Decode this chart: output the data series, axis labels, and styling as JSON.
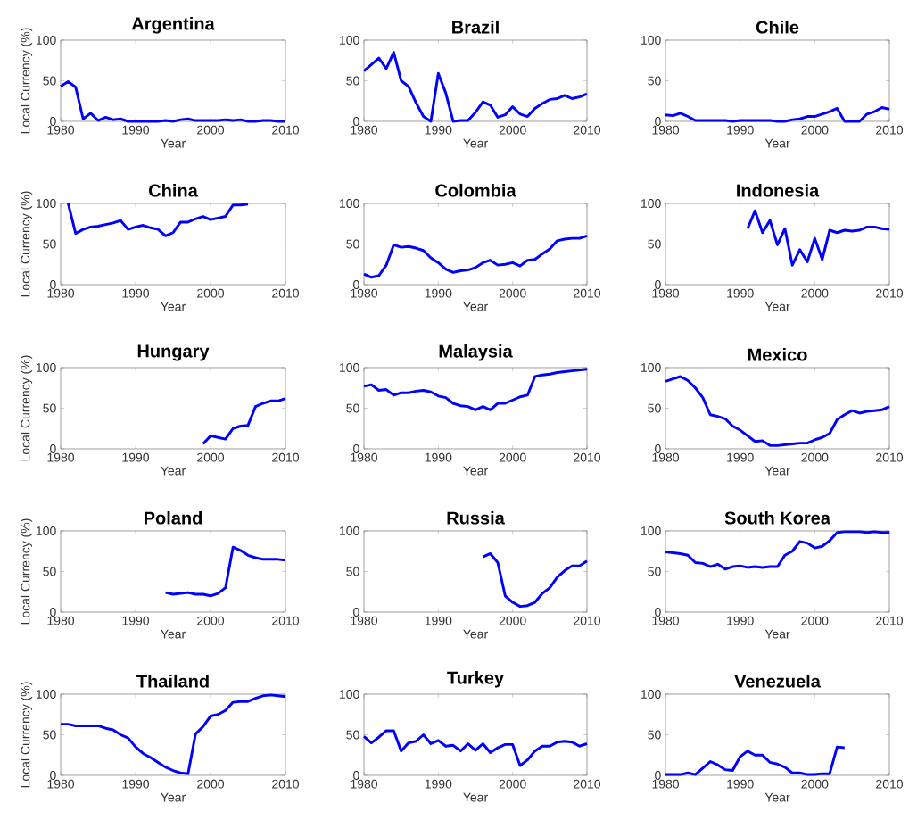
{
  "chart_data": [
    {
      "type": "line",
      "title": "Argentina",
      "xlabel": "Year",
      "ylabel": "Local Currency (%)",
      "color": "#0000ff",
      "xlim": [
        1980,
        2010
      ],
      "ylim": [
        0,
        100
      ],
      "xticks": [
        1980,
        1990,
        2000,
        2010
      ],
      "yticks": [
        0,
        50,
        100
      ],
      "x": [
        1980,
        1981,
        1982,
        1983,
        1984,
        1985,
        1986,
        1987,
        1988,
        1989,
        1990,
        1991,
        1992,
        1993,
        1994,
        1995,
        1996,
        1997,
        1998,
        1999,
        2000,
        2001,
        2002,
        2003,
        2004,
        2005,
        2006,
        2007,
        2008,
        2009,
        2010
      ],
      "values": [
        43,
        49,
        42,
        3,
        10,
        1,
        5,
        2,
        3,
        0,
        0,
        0,
        0,
        0,
        1,
        0,
        2,
        3,
        1,
        1,
        1,
        1,
        2,
        1,
        2,
        0,
        0,
        1,
        1,
        0,
        0
      ]
    },
    {
      "type": "line",
      "title": "Brazil",
      "xlabel": "Year",
      "color": "#0000ff",
      "xlim": [
        1980,
        2010
      ],
      "ylim": [
        0,
        100
      ],
      "xticks": [
        1980,
        1990,
        2000,
        2010
      ],
      "yticks": [
        0,
        50,
        100
      ],
      "x": [
        1980,
        1981,
        1982,
        1983,
        1984,
        1985,
        1986,
        1987,
        1988,
        1989,
        1990,
        1991,
        1992,
        1993,
        1994,
        1995,
        1996,
        1997,
        1998,
        1999,
        2000,
        2001,
        2002,
        2003,
        2004,
        2005,
        2006,
        2007,
        2008,
        2009,
        2010
      ],
      "values": [
        62,
        70,
        78,
        65,
        85,
        50,
        43,
        23,
        6,
        0,
        59,
        35,
        0,
        1,
        1,
        11,
        24,
        20,
        5,
        8,
        18,
        9,
        6,
        16,
        22,
        27,
        28,
        32,
        28,
        30,
        34
      ]
    },
    {
      "type": "line",
      "title": "Chile",
      "xlabel": "Year",
      "color": "#0000ff",
      "xlim": [
        1980,
        2010
      ],
      "ylim": [
        0,
        100
      ],
      "xticks": [
        1980,
        1990,
        2000,
        2010
      ],
      "yticks": [
        0,
        50,
        100
      ],
      "x": [
        1980,
        1981,
        1982,
        1983,
        1984,
        1985,
        1986,
        1987,
        1988,
        1989,
        1990,
        1991,
        1992,
        1993,
        1994,
        1995,
        1996,
        1997,
        1998,
        1999,
        2000,
        2001,
        2002,
        2003,
        2004,
        2005,
        2006,
        2007,
        2008,
        2009,
        2010
      ],
      "values": [
        8,
        7,
        10,
        6,
        1,
        1,
        1,
        1,
        1,
        0,
        1,
        1,
        1,
        1,
        1,
        0,
        0,
        2,
        3,
        6,
        6,
        9,
        12,
        16,
        0,
        0,
        0,
        9,
        12,
        17,
        15
      ]
    },
    {
      "type": "line",
      "title": "China",
      "xlabel": "Year",
      "ylabel": "Local Currency (%)",
      "color": "#0000ff",
      "xlim": [
        1980,
        2010
      ],
      "ylim": [
        0,
        100
      ],
      "xticks": [
        1980,
        1990,
        2000,
        2010
      ],
      "yticks": [
        0,
        50,
        100
      ],
      "x": [
        1981,
        1982,
        1983,
        1984,
        1985,
        1986,
        1987,
        1988,
        1989,
        1990,
        1991,
        1992,
        1993,
        1994,
        1995,
        1996,
        1997,
        1998,
        1999,
        2000,
        2001,
        2002,
        2003,
        2004,
        2005
      ],
      "values": [
        100,
        63,
        68,
        71,
        72,
        74,
        76,
        79,
        68,
        71,
        73,
        70,
        68,
        60,
        64,
        77,
        77,
        81,
        84,
        80,
        82,
        84,
        98,
        98,
        99
      ]
    },
    {
      "type": "line",
      "title": "Colombia",
      "xlabel": "Year",
      "color": "#0000ff",
      "xlim": [
        1980,
        2010
      ],
      "ylim": [
        0,
        100
      ],
      "xticks": [
        1980,
        1990,
        2000,
        2010
      ],
      "yticks": [
        0,
        50,
        100
      ],
      "x": [
        1980,
        1981,
        1982,
        1983,
        1984,
        1985,
        1986,
        1987,
        1988,
        1989,
        1990,
        1991,
        1992,
        1993,
        1994,
        1995,
        1996,
        1997,
        1998,
        1999,
        2000,
        2001,
        2002,
        2003,
        2004,
        2005,
        2006,
        2007,
        2008,
        2009,
        2010
      ],
      "values": [
        13,
        9,
        11,
        24,
        49,
        46,
        47,
        45,
        42,
        33,
        27,
        19,
        15,
        17,
        18,
        21,
        27,
        30,
        24,
        25,
        27,
        23,
        30,
        31,
        38,
        44,
        54,
        56,
        57,
        57,
        60
      ]
    },
    {
      "type": "line",
      "title": "Indonesia",
      "xlabel": "Year",
      "color": "#0000ff",
      "xlim": [
        1980,
        2010
      ],
      "ylim": [
        0,
        100
      ],
      "xticks": [
        1980,
        1990,
        2000,
        2010
      ],
      "yticks": [
        0,
        50,
        100
      ],
      "x": [
        1991,
        1992,
        1993,
        1994,
        1995,
        1996,
        1997,
        1998,
        1999,
        2000,
        2001,
        2002,
        2003,
        2004,
        2005,
        2006,
        2007,
        2008,
        2009,
        2010
      ],
      "values": [
        69,
        91,
        64,
        79,
        49,
        69,
        24,
        43,
        28,
        57,
        31,
        67,
        64,
        67,
        66,
        67,
        71,
        71,
        69,
        68
      ]
    },
    {
      "type": "line",
      "title": "Hungary",
      "xlabel": "Year",
      "ylabel": "Local Currency (%)",
      "color": "#0000ff",
      "xlim": [
        1980,
        2010
      ],
      "ylim": [
        0,
        100
      ],
      "xticks": [
        1980,
        1990,
        2000,
        2010
      ],
      "yticks": [
        0,
        50,
        100
      ],
      "x": [
        1999,
        2000,
        2001,
        2002,
        2003,
        2004,
        2005,
        2006,
        2007,
        2008,
        2009,
        2010
      ],
      "values": [
        6,
        16,
        14,
        12,
        25,
        28,
        29,
        52,
        56,
        59,
        59,
        62
      ]
    },
    {
      "type": "line",
      "title": "Malaysia",
      "xlabel": "Year",
      "color": "#0000ff",
      "xlim": [
        1980,
        2010
      ],
      "ylim": [
        0,
        100
      ],
      "xticks": [
        1980,
        1990,
        2000,
        2010
      ],
      "yticks": [
        0,
        50,
        100
      ],
      "x": [
        1980,
        1981,
        1982,
        1983,
        1984,
        1985,
        1986,
        1987,
        1988,
        1989,
        1990,
        1991,
        1992,
        1993,
        1994,
        1995,
        1996,
        1997,
        1998,
        1999,
        2000,
        2001,
        2002,
        2003,
        2004,
        2005,
        2006,
        2007,
        2008,
        2009,
        2010
      ],
      "values": [
        77,
        79,
        72,
        73,
        66,
        69,
        69,
        71,
        72,
        70,
        65,
        63,
        56,
        53,
        52,
        48,
        52,
        48,
        56,
        56,
        60,
        64,
        66,
        89,
        91,
        92,
        94,
        95,
        96,
        97,
        98
      ]
    },
    {
      "type": "line",
      "title": "Mexico",
      "xlabel": "Year",
      "color": "#0000ff",
      "xlim": [
        1980,
        2010
      ],
      "ylim": [
        0,
        100
      ],
      "xticks": [
        1980,
        1990,
        2000,
        2010
      ],
      "yticks": [
        0,
        50,
        100
      ],
      "x": [
        1980,
        1981,
        1982,
        1983,
        1984,
        1985,
        1986,
        1987,
        1988,
        1989,
        1990,
        1991,
        1992,
        1993,
        1994,
        1995,
        1996,
        1997,
        1998,
        1999,
        2000,
        2001,
        2002,
        2003,
        2004,
        2005,
        2006,
        2007,
        2008,
        2009,
        2010
      ],
      "values": [
        83,
        86,
        89,
        84,
        75,
        63,
        42,
        40,
        37,
        28,
        23,
        16,
        9,
        10,
        4,
        4,
        5,
        6,
        7,
        7,
        11,
        14,
        19,
        36,
        42,
        47,
        44,
        46,
        47,
        48,
        52
      ]
    },
    {
      "type": "line",
      "title": "Poland",
      "xlabel": "Year",
      "ylabel": "Local Currency (%)",
      "color": "#0000ff",
      "xlim": [
        1980,
        2010
      ],
      "ylim": [
        0,
        100
      ],
      "xticks": [
        1980,
        1990,
        2000,
        2010
      ],
      "yticks": [
        0,
        50,
        100
      ],
      "x": [
        1994,
        1995,
        1996,
        1997,
        1998,
        1999,
        2000,
        2001,
        2002,
        2003,
        2004,
        2005,
        2006,
        2007,
        2008,
        2009,
        2010
      ],
      "values": [
        24,
        22,
        23,
        24,
        22,
        22,
        20,
        23,
        30,
        80,
        76,
        70,
        67,
        65,
        65,
        65,
        64
      ]
    },
    {
      "type": "line",
      "title": "Russia",
      "xlabel": "Year",
      "color": "#0000ff",
      "xlim": [
        1980,
        2010
      ],
      "ylim": [
        0,
        100
      ],
      "xticks": [
        1980,
        1990,
        2000,
        2010
      ],
      "yticks": [
        0,
        50,
        100
      ],
      "x": [
        1996,
        1997,
        1998,
        1999,
        2000,
        2001,
        2002,
        2003,
        2004,
        2005,
        2006,
        2007,
        2008,
        2009,
        2010
      ],
      "values": [
        68,
        72,
        61,
        20,
        12,
        7,
        8,
        12,
        23,
        30,
        43,
        51,
        57,
        57,
        63
      ]
    },
    {
      "type": "line",
      "title": "South Korea",
      "xlabel": "Year",
      "color": "#0000ff",
      "xlim": [
        1980,
        2010
      ],
      "ylim": [
        0,
        100
      ],
      "xticks": [
        1980,
        1990,
        2000,
        2010
      ],
      "yticks": [
        0,
        50,
        100
      ],
      "x": [
        1980,
        1981,
        1982,
        1983,
        1984,
        1985,
        1986,
        1987,
        1988,
        1989,
        1990,
        1991,
        1992,
        1993,
        1994,
        1995,
        1996,
        1997,
        1998,
        1999,
        2000,
        2001,
        2002,
        2003,
        2004,
        2005,
        2006,
        2007,
        2008,
        2009,
        2010
      ],
      "values": [
        74,
        73,
        72,
        70,
        61,
        60,
        56,
        59,
        53,
        56,
        57,
        55,
        56,
        55,
        56,
        56,
        70,
        75,
        87,
        85,
        79,
        81,
        88,
        98,
        99,
        99,
        99,
        98,
        99,
        98,
        98
      ]
    },
    {
      "type": "line",
      "title": "Thailand",
      "xlabel": "Year",
      "ylabel": "Local Currency (%)",
      "color": "#0000ff",
      "xlim": [
        1980,
        2010
      ],
      "ylim": [
        0,
        100
      ],
      "xticks": [
        1980,
        1990,
        2000,
        2010
      ],
      "yticks": [
        0,
        50,
        100
      ],
      "x": [
        1980,
        1981,
        1982,
        1983,
        1984,
        1985,
        1986,
        1987,
        1988,
        1989,
        1990,
        1991,
        1992,
        1993,
        1994,
        1995,
        1996,
        1997,
        1998,
        1999,
        2000,
        2001,
        2002,
        2003,
        2004,
        2005,
        2006,
        2007,
        2008,
        2009,
        2010
      ],
      "values": [
        63,
        63,
        61,
        61,
        61,
        61,
        58,
        56,
        50,
        46,
        35,
        27,
        22,
        16,
        10,
        6,
        3,
        2,
        51,
        60,
        73,
        75,
        80,
        90,
        91,
        91,
        95,
        98,
        99,
        98,
        97
      ]
    },
    {
      "type": "line",
      "title": "Turkey",
      "xlabel": "Year",
      "color": "#0000ff",
      "xlim": [
        1980,
        2010
      ],
      "ylim": [
        0,
        100
      ],
      "xticks": [
        1980,
        1990,
        2000,
        2010
      ],
      "yticks": [
        0,
        50,
        100
      ],
      "x": [
        1980,
        1981,
        1982,
        1983,
        1984,
        1985,
        1986,
        1987,
        1988,
        1989,
        1990,
        1991,
        1992,
        1993,
        1994,
        1995,
        1996,
        1997,
        1998,
        1999,
        2000,
        2001,
        2002,
        2003,
        2004,
        2005,
        2006,
        2007,
        2008,
        2009,
        2010
      ],
      "values": [
        48,
        40,
        47,
        55,
        55,
        30,
        40,
        42,
        50,
        39,
        43,
        36,
        37,
        30,
        39,
        31,
        39,
        28,
        34,
        38,
        38,
        12,
        19,
        30,
        36,
        36,
        41,
        42,
        41,
        36,
        39
      ]
    },
    {
      "type": "line",
      "title": "Venezuela",
      "xlabel": "Year",
      "color": "#0000ff",
      "xlim": [
        1980,
        2010
      ],
      "ylim": [
        0,
        100
      ],
      "xticks": [
        1980,
        1990,
        2000,
        2010
      ],
      "yticks": [
        0,
        50,
        100
      ],
      "x": [
        1980,
        1981,
        1982,
        1983,
        1984,
        1985,
        1986,
        1987,
        1988,
        1989,
        1990,
        1991,
        1992,
        1993,
        1994,
        1995,
        1996,
        1997,
        1998,
        1999,
        2000,
        2001,
        2002,
        2003,
        2004
      ],
      "values": [
        1,
        1,
        1,
        3,
        1,
        9,
        17,
        13,
        7,
        6,
        23,
        30,
        25,
        25,
        16,
        14,
        10,
        3,
        3,
        1,
        1,
        2,
        2,
        35,
        34
      ]
    }
  ]
}
